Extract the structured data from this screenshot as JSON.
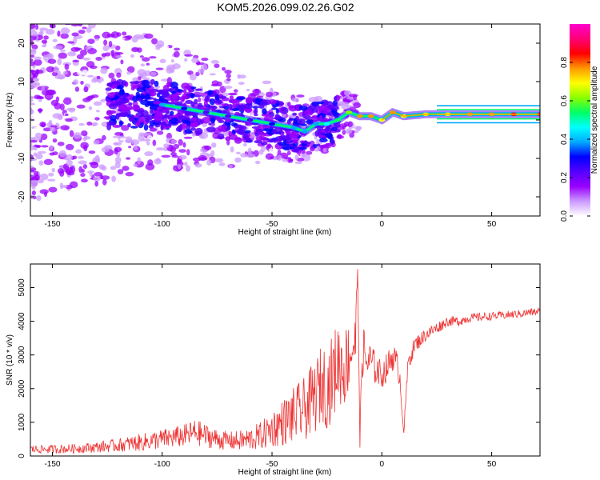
{
  "chart_data": [
    {
      "type": "heatmap",
      "title": "KOM5.2026.099.02.26.G02",
      "xlabel": "Height of straight line (km)",
      "ylabel": "Frequency (Hz)",
      "xlim": [
        -160,
        72
      ],
      "ylim": [
        -25,
        25
      ],
      "xticks": [
        -150,
        -100,
        -50,
        0,
        50
      ],
      "yticks": [
        -20,
        -10,
        0,
        10,
        20
      ],
      "xtick_labels": [
        "-150",
        "-100",
        "-50",
        "0",
        "50"
      ],
      "ytick_labels": [
        "-20",
        "-10",
        "0",
        "10",
        "20"
      ],
      "colorbar": {
        "label": "Normalized spectral amplitude",
        "range": [
          0,
          1
        ],
        "ticks": [
          0.0,
          0.2,
          0.4,
          0.6,
          0.8
        ],
        "tick_labels": [
          "0.0",
          "0.2",
          "0.4",
          "0.6",
          "0.8"
        ],
        "colormap": [
          "#ffffff",
          "#cc99ff",
          "#9900ff",
          "#5500ff",
          "#0000ff",
          "#00aaff",
          "#00ffff",
          "#00ff66",
          "#88ff00",
          "#ffff00",
          "#ff9900",
          "#ff0000",
          "#ff0077",
          "#ff00cc"
        ]
      },
      "ridge": {
        "description": "frequency centerline of the signal",
        "x": [
          -100,
          -90,
          -80,
          -70,
          -60,
          -50,
          -40,
          -35,
          -30,
          -25,
          -20,
          -15,
          -10,
          -5,
          0,
          5,
          10,
          20,
          30,
          40,
          50,
          60,
          72
        ],
        "y": [
          4,
          3,
          2,
          1,
          0,
          -1,
          -2,
          -3,
          -1,
          -1,
          0,
          2,
          1,
          1,
          0,
          2,
          1,
          1.5,
          1.5,
          1.5,
          1.5,
          1.5,
          1.5
        ],
        "amplitude": [
          0.35,
          0.3,
          0.25,
          0.22,
          0.25,
          0.3,
          0.35,
          0.35,
          0.4,
          0.45,
          0.5,
          0.6,
          0.75,
          0.8,
          0.7,
          0.75,
          0.7,
          0.7,
          0.72,
          0.75,
          0.78,
          0.82,
          0.85
        ]
      }
    },
    {
      "type": "line",
      "xlabel": "Height of straight line (km)",
      "ylabel": "SNR (10 * v/v)",
      "xlim": [
        -160,
        72
      ],
      "ylim": [
        0,
        5700
      ],
      "xticks": [
        -150,
        -100,
        -50,
        0,
        50
      ],
      "yticks": [
        0,
        1000,
        2000,
        3000,
        4000,
        5000
      ],
      "xtick_labels": [
        "-150",
        "-100",
        "-50",
        "0",
        "50"
      ],
      "ytick_labels": [
        "0",
        "1000",
        "2000",
        "3000",
        "4000",
        "5000"
      ],
      "color": "#ee3333",
      "series": [
        {
          "name": "SNR",
          "x": [
            -160,
            -150,
            -140,
            -130,
            -120,
            -110,
            -100,
            -95,
            -90,
            -85,
            -80,
            -75,
            -70,
            -65,
            -60,
            -55,
            -50,
            -45,
            -40,
            -35,
            -30,
            -27,
            -25,
            -22,
            -20,
            -17,
            -15,
            -12,
            -11,
            -10,
            -9,
            -7,
            -5,
            -3,
            0,
            3,
            5,
            8,
            10,
            12,
            15,
            20,
            25,
            30,
            35,
            40,
            50,
            60,
            72
          ],
          "y": [
            200,
            200,
            220,
            260,
            320,
            400,
            500,
            550,
            600,
            700,
            600,
            500,
            450,
            450,
            500,
            600,
            800,
            1000,
            1200,
            1400,
            1800,
            2200,
            2000,
            2400,
            2800,
            2600,
            3000,
            3400,
            5600,
            300,
            3200,
            2800,
            2800,
            2600,
            2400,
            2700,
            3000,
            2500,
            700,
            2800,
            3300,
            3600,
            3800,
            4000,
            4000,
            4100,
            4150,
            4200,
            4300
          ],
          "spread": [
            120,
            130,
            140,
            160,
            200,
            260,
            300,
            320,
            340,
            400,
            350,
            300,
            280,
            300,
            350,
            420,
            550,
            700,
            850,
            950,
            1100,
            1200,
            1200,
            1300,
            1300,
            1200,
            1100,
            900,
            100,
            100,
            900,
            700,
            600,
            500,
            400,
            450,
            450,
            400,
            100,
            300,
            250,
            200,
            180,
            150,
            150,
            130,
            120,
            120,
            120
          ]
        }
      ]
    }
  ]
}
